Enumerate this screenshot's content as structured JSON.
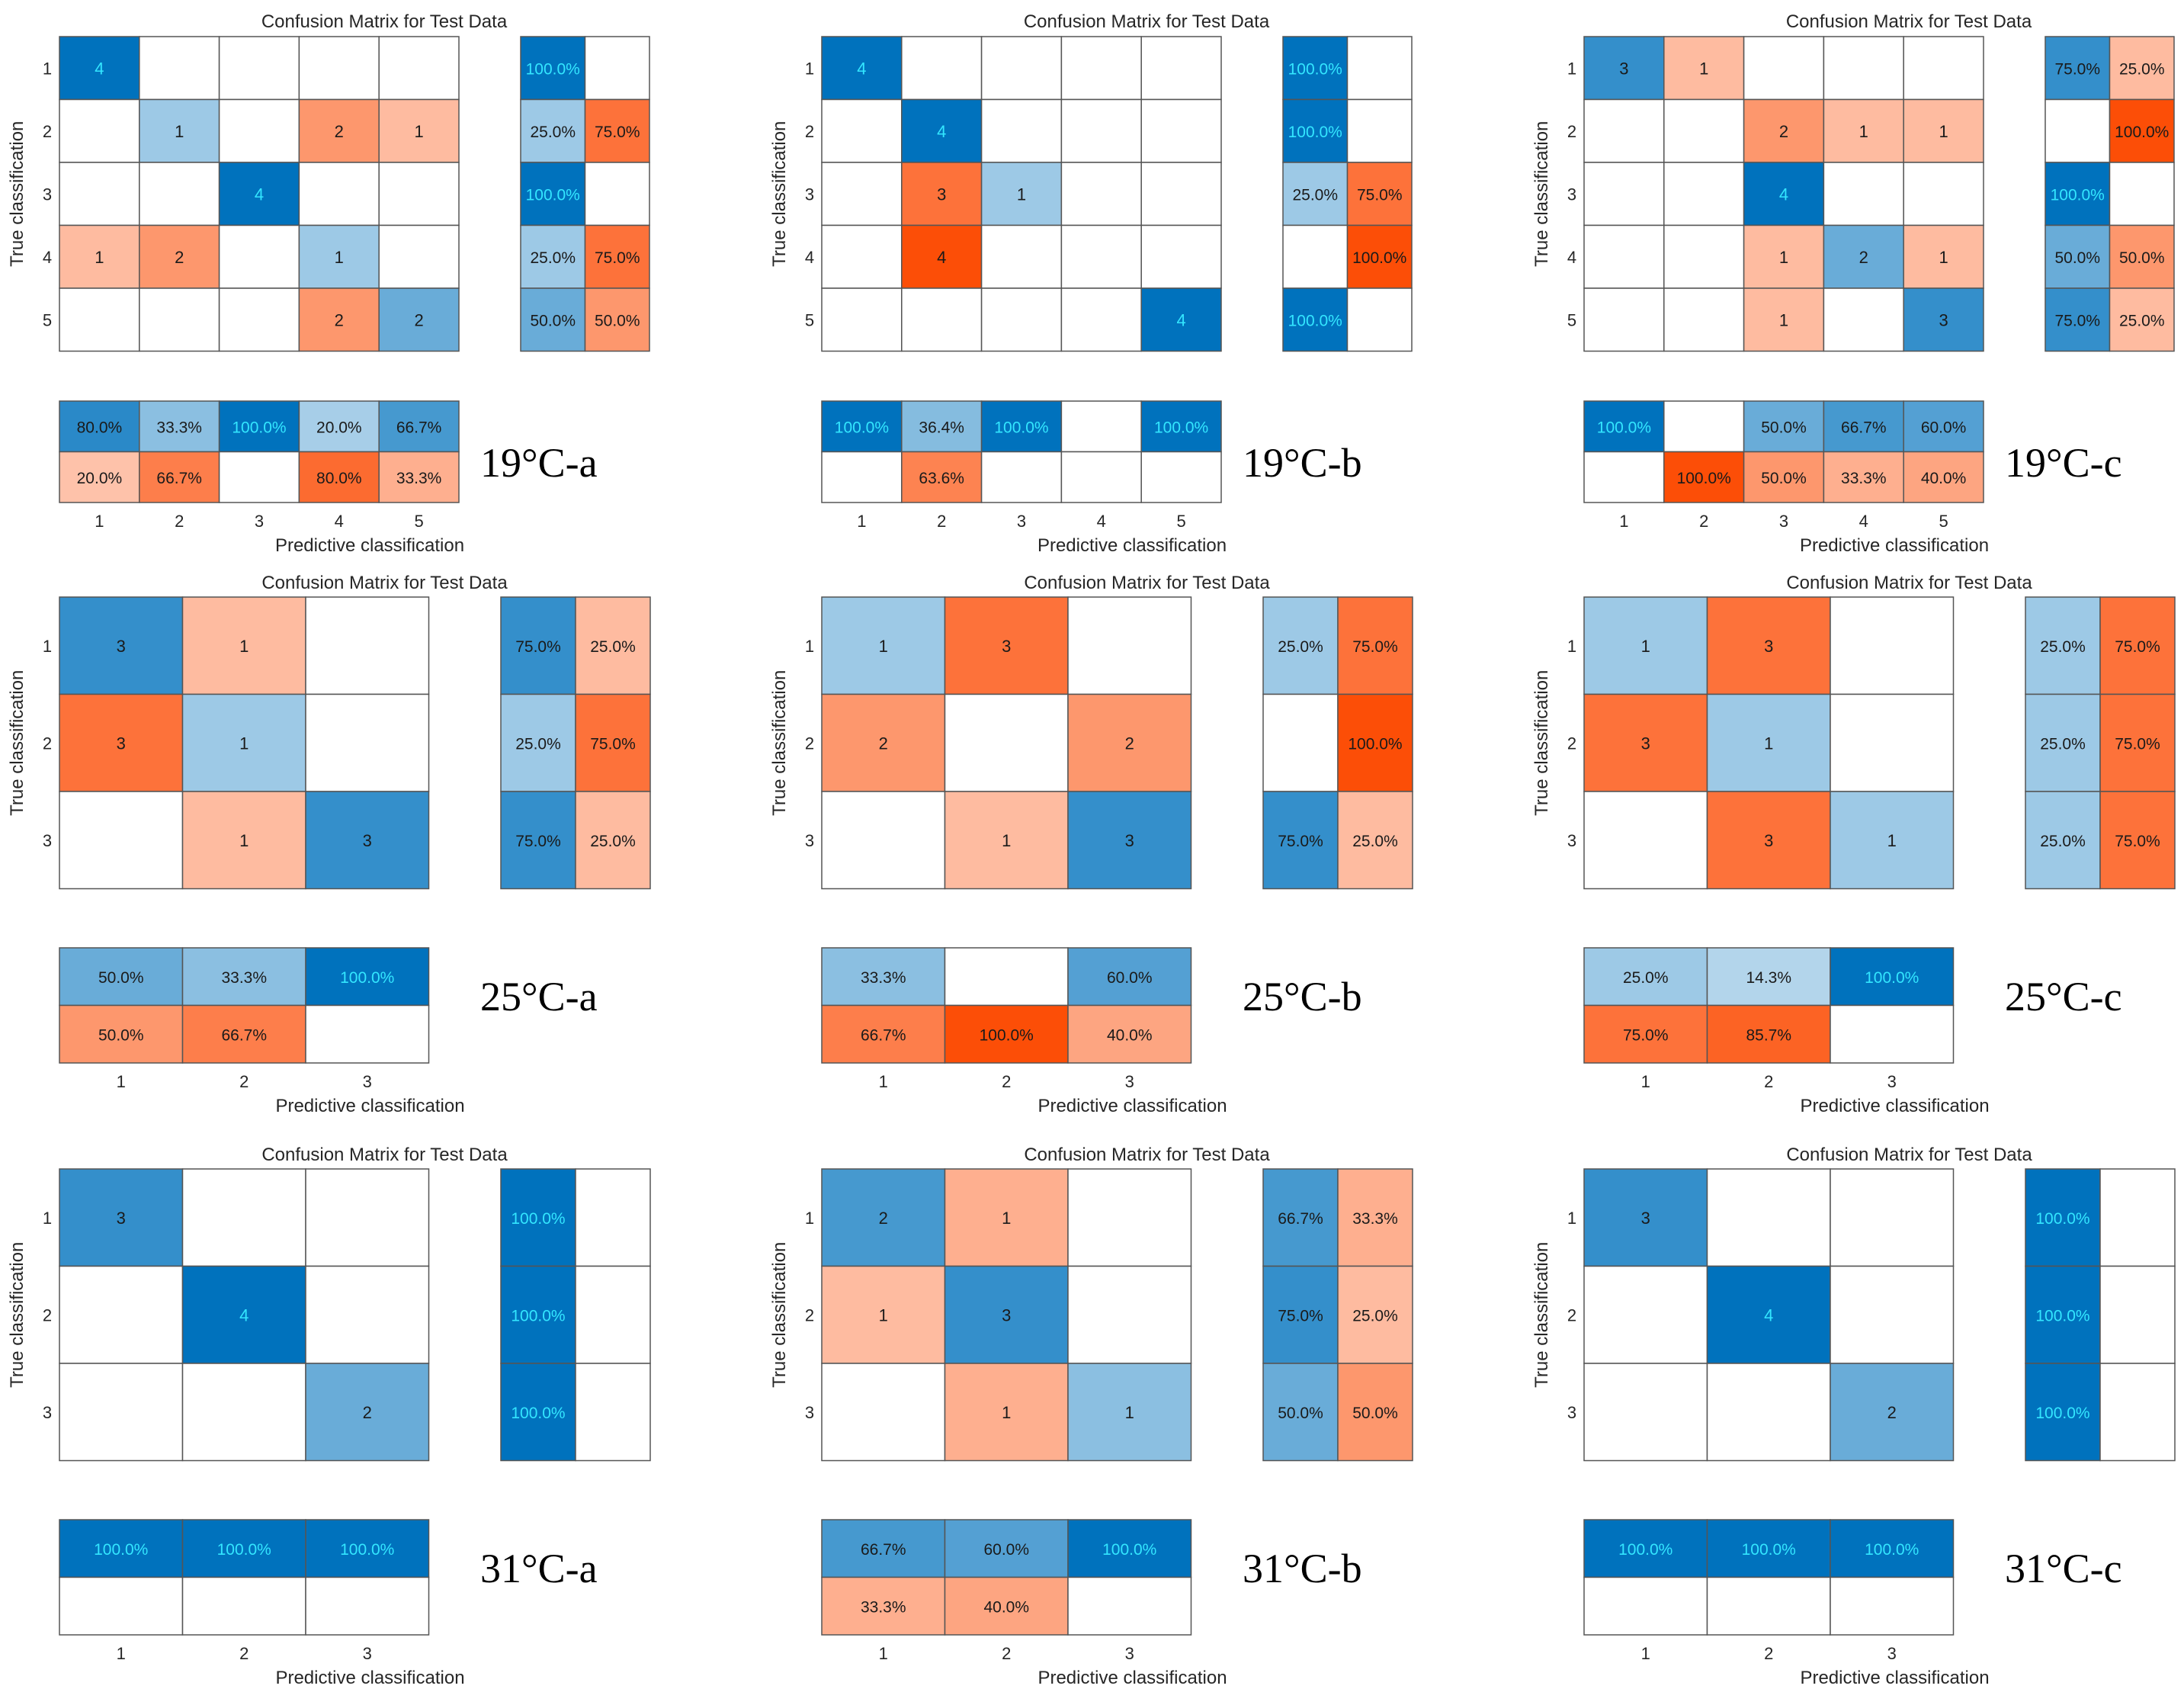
{
  "figure": {
    "blue": "#0072bd",
    "orange": "#fc4e07"
  },
  "chart_data": [
    {
      "type": "heatmap",
      "label": "19°C-a",
      "title": "Confusion Matrix for Test Data",
      "xlabel": "Predictive classification",
      "ylabel": "True classification",
      "classes": [
        "1",
        "2",
        "3",
        "4",
        "5"
      ],
      "matrix": [
        [
          4,
          0,
          0,
          0,
          0
        ],
        [
          0,
          1,
          0,
          2,
          1
        ],
        [
          0,
          0,
          4,
          0,
          0
        ],
        [
          1,
          2,
          0,
          1,
          0
        ],
        [
          0,
          0,
          0,
          2,
          2
        ]
      ],
      "row_summary": [
        [
          "100.0%",
          ""
        ],
        [
          "25.0%",
          "75.0%"
        ],
        [
          "100.0%",
          ""
        ],
        [
          "25.0%",
          "75.0%"
        ],
        [
          "50.0%",
          "50.0%"
        ]
      ],
      "col_summary": [
        [
          "80.0%",
          "33.3%",
          "100.0%",
          "20.0%",
          "66.7%"
        ],
        [
          "20.0%",
          "66.7%",
          "",
          "80.0%",
          "33.3%"
        ]
      ]
    },
    {
      "type": "heatmap",
      "label": "19°C-b",
      "title": "Confusion Matrix for Test Data",
      "xlabel": "Predictive classification",
      "ylabel": "True classification",
      "classes": [
        "1",
        "2",
        "3",
        "4",
        "5"
      ],
      "matrix": [
        [
          4,
          0,
          0,
          0,
          0
        ],
        [
          0,
          4,
          0,
          0,
          0
        ],
        [
          0,
          3,
          1,
          0,
          0
        ],
        [
          0,
          4,
          0,
          0,
          0
        ],
        [
          0,
          0,
          0,
          0,
          4
        ]
      ],
      "row_summary": [
        [
          "100.0%",
          ""
        ],
        [
          "100.0%",
          ""
        ],
        [
          "25.0%",
          "75.0%"
        ],
        [
          "",
          "100.0%"
        ],
        [
          "100.0%",
          ""
        ]
      ],
      "col_summary": [
        [
          "100.0%",
          "36.4%",
          "100.0%",
          "",
          "100.0%"
        ],
        [
          "",
          "63.6%",
          "",
          "",
          ""
        ]
      ]
    },
    {
      "type": "heatmap",
      "label": "19°C-c",
      "title": "Confusion Matrix for Test Data",
      "xlabel": "Predictive classification",
      "ylabel": "True classification",
      "classes": [
        "1",
        "2",
        "3",
        "4",
        "5"
      ],
      "matrix": [
        [
          3,
          1,
          0,
          0,
          0
        ],
        [
          0,
          0,
          2,
          1,
          1
        ],
        [
          0,
          0,
          4,
          0,
          0
        ],
        [
          0,
          0,
          1,
          2,
          1
        ],
        [
          0,
          0,
          1,
          0,
          3
        ]
      ],
      "row_summary": [
        [
          "75.0%",
          "25.0%"
        ],
        [
          "",
          "100.0%"
        ],
        [
          "100.0%",
          ""
        ],
        [
          "50.0%",
          "50.0%"
        ],
        [
          "75.0%",
          "25.0%"
        ]
      ],
      "col_summary": [
        [
          "100.0%",
          "",
          "50.0%",
          "66.7%",
          "60.0%"
        ],
        [
          "",
          "100.0%",
          "50.0%",
          "33.3%",
          "40.0%"
        ]
      ]
    },
    {
      "type": "heatmap",
      "label": "25°C-a",
      "title": "Confusion Matrix for Test Data",
      "xlabel": "Predictive classification",
      "ylabel": "True classification",
      "classes": [
        "1",
        "2",
        "3"
      ],
      "matrix": [
        [
          3,
          1,
          0
        ],
        [
          3,
          1,
          0
        ],
        [
          0,
          1,
          3
        ]
      ],
      "row_summary": [
        [
          "75.0%",
          "25.0%"
        ],
        [
          "25.0%",
          "75.0%"
        ],
        [
          "75.0%",
          "25.0%"
        ]
      ],
      "col_summary": [
        [
          "50.0%",
          "33.3%",
          "100.0%"
        ],
        [
          "50.0%",
          "66.7%",
          ""
        ]
      ]
    },
    {
      "type": "heatmap",
      "label": "25°C-b",
      "title": "Confusion Matrix for Test Data",
      "xlabel": "Predictive classification",
      "ylabel": "True classification",
      "classes": [
        "1",
        "2",
        "3"
      ],
      "matrix": [
        [
          1,
          3,
          0
        ],
        [
          2,
          0,
          2
        ],
        [
          0,
          1,
          3
        ]
      ],
      "row_summary": [
        [
          "25.0%",
          "75.0%"
        ],
        [
          "",
          "100.0%"
        ],
        [
          "75.0%",
          "25.0%"
        ]
      ],
      "col_summary": [
        [
          "33.3%",
          "",
          "60.0%"
        ],
        [
          "66.7%",
          "100.0%",
          "40.0%"
        ]
      ]
    },
    {
      "type": "heatmap",
      "label": "25°C-c",
      "title": "Confusion Matrix for Test Data",
      "xlabel": "Predictive classification",
      "ylabel": "True classification",
      "classes": [
        "1",
        "2",
        "3"
      ],
      "matrix": [
        [
          1,
          3,
          0
        ],
        [
          3,
          1,
          0
        ],
        [
          0,
          3,
          1
        ]
      ],
      "row_summary": [
        [
          "25.0%",
          "75.0%"
        ],
        [
          "25.0%",
          "75.0%"
        ],
        [
          "25.0%",
          "75.0%"
        ]
      ],
      "col_summary": [
        [
          "25.0%",
          "14.3%",
          "100.0%"
        ],
        [
          "75.0%",
          "85.7%",
          ""
        ]
      ]
    },
    {
      "type": "heatmap",
      "label": "31°C-a",
      "title": "Confusion Matrix for Test Data",
      "xlabel": "Predictive classification",
      "ylabel": "True classification",
      "classes": [
        "1",
        "2",
        "3"
      ],
      "matrix": [
        [
          3,
          0,
          0
        ],
        [
          0,
          4,
          0
        ],
        [
          0,
          0,
          2
        ]
      ],
      "row_summary": [
        [
          "100.0%",
          ""
        ],
        [
          "100.0%",
          ""
        ],
        [
          "100.0%",
          ""
        ]
      ],
      "col_summary": [
        [
          "100.0%",
          "100.0%",
          "100.0%"
        ],
        [
          "",
          "",
          ""
        ]
      ]
    },
    {
      "type": "heatmap",
      "label": "31°C-b",
      "title": "Confusion Matrix for Test Data",
      "xlabel": "Predictive classification",
      "ylabel": "True classification",
      "classes": [
        "1",
        "2",
        "3"
      ],
      "matrix": [
        [
          2,
          1,
          0
        ],
        [
          1,
          3,
          0
        ],
        [
          0,
          1,
          1
        ]
      ],
      "row_summary": [
        [
          "66.7%",
          "33.3%"
        ],
        [
          "75.0%",
          "25.0%"
        ],
        [
          "50.0%",
          "50.0%"
        ]
      ],
      "col_summary": [
        [
          "66.7%",
          "60.0%",
          "100.0%"
        ],
        [
          "33.3%",
          "40.0%",
          ""
        ]
      ]
    },
    {
      "type": "heatmap",
      "label": "31°C-c",
      "title": "Confusion Matrix for Test Data",
      "xlabel": "Predictive classification",
      "ylabel": "True classification",
      "classes": [
        "1",
        "2",
        "3"
      ],
      "matrix": [
        [
          3,
          0,
          0
        ],
        [
          0,
          4,
          0
        ],
        [
          0,
          0,
          2
        ]
      ],
      "row_summary": [
        [
          "100.0%",
          ""
        ],
        [
          "100.0%",
          ""
        ],
        [
          "100.0%",
          ""
        ]
      ],
      "col_summary": [
        [
          "100.0%",
          "100.0%",
          "100.0%"
        ],
        [
          "",
          "",
          ""
        ]
      ]
    }
  ]
}
